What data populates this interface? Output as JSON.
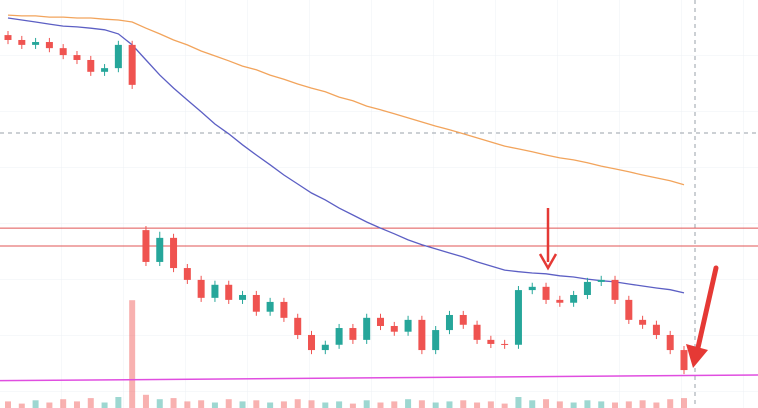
{
  "chart_data": {
    "type": "candlestick",
    "ylim": [
      0,
      100
    ],
    "open": [
      91.4,
      90.2,
      89.0,
      89.7,
      88.2,
      86.5,
      85.3,
      82.4,
      83.3,
      89.0,
      43.6,
      35.8,
      41.7,
      34.3,
      31.4,
      27.0,
      30.2,
      26.5,
      27.7,
      23.6,
      26.0,
      22.1,
      17.9,
      14.2,
      15.5,
      19.6,
      16.7,
      22.1,
      20.1,
      18.7,
      21.6,
      14.2,
      19.1,
      22.8,
      20.4,
      16.7,
      15.7,
      15.5,
      28.9,
      29.7,
      26.5,
      25.8,
      27.7,
      30.9,
      31.4,
      26.5,
      21.6,
      20.4,
      17.9,
      14.2
    ],
    "high": [
      92.4,
      91.2,
      90.7,
      90.7,
      89.2,
      87.5,
      86.3,
      84.3,
      90.0,
      90.0,
      44.6,
      43.2,
      42.7,
      35.3,
      32.4,
      31.2,
      31.2,
      28.7,
      28.7,
      27.0,
      27.0,
      23.1,
      18.9,
      16.5,
      20.6,
      20.6,
      23.1,
      23.1,
      21.1,
      22.6,
      22.6,
      20.1,
      23.8,
      23.8,
      21.4,
      17.7,
      16.7,
      29.9,
      30.7,
      30.7,
      27.5,
      28.7,
      31.9,
      32.4,
      32.4,
      27.5,
      22.6,
      21.4,
      18.9,
      15.2
    ],
    "low": [
      89.2,
      88.0,
      88.0,
      87.2,
      85.5,
      84.3,
      81.4,
      81.4,
      82.3,
      78.2,
      34.8,
      34.8,
      33.3,
      30.4,
      26.0,
      26.0,
      25.5,
      25.5,
      22.6,
      22.6,
      21.1,
      16.9,
      13.2,
      13.2,
      14.5,
      15.7,
      15.7,
      19.1,
      17.7,
      17.7,
      13.2,
      13.2,
      18.1,
      19.4,
      15.7,
      14.7,
      14.5,
      14.5,
      27.9,
      25.5,
      24.8,
      24.8,
      26.7,
      29.9,
      25.5,
      20.6,
      19.4,
      16.9,
      13.2,
      8.3
    ],
    "close": [
      90.2,
      89.0,
      89.7,
      88.2,
      86.5,
      85.3,
      82.4,
      83.3,
      89.0,
      79.2,
      35.8,
      41.7,
      34.3,
      31.4,
      27.0,
      30.2,
      26.5,
      27.7,
      23.6,
      26.0,
      22.1,
      17.9,
      14.2,
      15.5,
      19.6,
      16.7,
      22.1,
      20.1,
      18.7,
      21.6,
      14.2,
      19.1,
      22.8,
      20.4,
      16.7,
      15.7,
      15.5,
      28.9,
      29.7,
      26.5,
      25.8,
      27.7,
      30.9,
      31.4,
      26.5,
      21.6,
      20.4,
      17.9,
      14.2,
      9.3
    ],
    "up_color": "#26a69a",
    "down_color": "#ef5350",
    "moving_averages": [
      {
        "color": "#5c5fc4",
        "values": [
          95.6,
          95.1,
          94.6,
          94.1,
          93.6,
          93.4,
          93.1,
          92.7,
          91.7,
          89.0,
          85.3,
          81.6,
          78.4,
          75.5,
          72.6,
          69.6,
          67.2,
          64.5,
          62.0,
          59.6,
          57.1,
          54.9,
          52.7,
          51.0,
          49.0,
          47.3,
          45.6,
          44.1,
          42.7,
          41.2,
          40.0,
          39.0,
          38.0,
          37.0,
          35.8,
          34.8,
          33.8,
          33.4,
          33.1,
          32.9,
          32.4,
          32.1,
          31.6,
          31.2,
          30.9,
          30.4,
          29.9,
          29.4,
          29.0,
          28.2
        ]
      },
      {
        "color": "#f2a45c",
        "values": [
          96.3,
          96.1,
          96.1,
          95.8,
          95.8,
          95.6,
          95.6,
          95.3,
          95.1,
          94.6,
          93.1,
          91.7,
          90.2,
          89.0,
          87.5,
          86.3,
          85.1,
          83.8,
          82.9,
          81.6,
          80.6,
          79.4,
          78.4,
          77.5,
          76.2,
          75.3,
          74.0,
          73.1,
          72.1,
          71.1,
          70.1,
          69.1,
          68.2,
          67.2,
          66.2,
          65.2,
          64.2,
          63.5,
          62.8,
          62.0,
          61.3,
          60.8,
          60.1,
          59.3,
          58.6,
          57.9,
          57.1,
          56.4,
          55.7,
          54.7
        ]
      }
    ],
    "horizontal_lines": [
      {
        "value": 44.1,
        "color": "#e05555"
      },
      {
        "value": 39.7,
        "color": "#e05555"
      }
    ],
    "trendline": {
      "values": [
        6.7,
        8.1
      ],
      "color": "#e04ee0"
    },
    "crosshair_y": 67.4,
    "volume": [
      6,
      4,
      7,
      5,
      8,
      6,
      9,
      5,
      10,
      98,
      12,
      8,
      9,
      6,
      7,
      5,
      8,
      6,
      7,
      5,
      6,
      8,
      7,
      5,
      6,
      4,
      7,
      5,
      6,
      8,
      7,
      5,
      6,
      7,
      5,
      6,
      4,
      10,
      7,
      8,
      6,
      5,
      7,
      6,
      5,
      6,
      7,
      5,
      8,
      9
    ],
    "volume_lim": [
      0,
      100
    ]
  }
}
